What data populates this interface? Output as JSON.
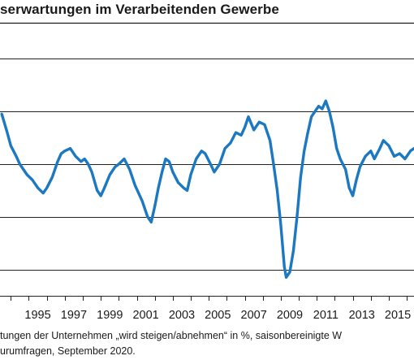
{
  "chart_data": {
    "type": "line",
    "title": "serwartungen im Verarbeitenden Gewerbe",
    "xlabel": "",
    "ylabel": "",
    "x_tick_labels": [
      "1995",
      "1997",
      "1999",
      "2001",
      "2003",
      "2005",
      "2007",
      "2009",
      "2011",
      "2013",
      "2015"
    ],
    "x_ticks": [
      1995,
      1997,
      1999,
      2001,
      2003,
      2005,
      2007,
      2009,
      2011,
      2013,
      2015
    ],
    "xlim": [
      1993.4,
      2016.4
    ],
    "y_gridlines": [
      -40,
      -20,
      0,
      20,
      40
    ],
    "ylim": [
      -50,
      50
    ],
    "grid": "horizontal",
    "series": [
      {
        "color": "#1c78c0",
        "points": [
          [
            1993.5,
            19
          ],
          [
            1993.8,
            12
          ],
          [
            1994.0,
            7
          ],
          [
            1994.3,
            3
          ],
          [
            1994.5,
            0
          ],
          [
            1994.9,
            -4
          ],
          [
            1995.2,
            -6
          ],
          [
            1995.5,
            -9
          ],
          [
            1995.8,
            -11
          ],
          [
            1996.0,
            -9
          ],
          [
            1996.3,
            -5
          ],
          [
            1996.6,
            1
          ],
          [
            1996.8,
            4
          ],
          [
            1997.0,
            5
          ],
          [
            1997.3,
            6
          ],
          [
            1997.6,
            3
          ],
          [
            1997.9,
            1
          ],
          [
            1998.1,
            2
          ],
          [
            1998.3,
            0
          ],
          [
            1998.5,
            -3
          ],
          [
            1998.8,
            -10
          ],
          [
            1999.0,
            -12
          ],
          [
            1999.2,
            -9
          ],
          [
            1999.5,
            -4
          ],
          [
            1999.8,
            -1
          ],
          [
            2000.0,
            0
          ],
          [
            2000.3,
            2
          ],
          [
            2000.6,
            -2
          ],
          [
            2000.9,
            -8
          ],
          [
            2001.1,
            -11
          ],
          [
            2001.3,
            -14
          ],
          [
            2001.6,
            -20
          ],
          [
            2001.8,
            -22
          ],
          [
            2002.0,
            -16
          ],
          [
            2002.2,
            -9
          ],
          [
            2002.4,
            -3
          ],
          [
            2002.6,
            2
          ],
          [
            2002.8,
            1
          ],
          [
            2003.0,
            -3
          ],
          [
            2003.3,
            -7
          ],
          [
            2003.6,
            -9
          ],
          [
            2003.8,
            -10
          ],
          [
            2004.0,
            -4
          ],
          [
            2004.3,
            2
          ],
          [
            2004.6,
            5
          ],
          [
            2004.8,
            4
          ],
          [
            2005.1,
            0
          ],
          [
            2005.3,
            -3
          ],
          [
            2005.6,
            0
          ],
          [
            2005.9,
            6
          ],
          [
            2006.2,
            8
          ],
          [
            2006.5,
            12
          ],
          [
            2006.8,
            11
          ],
          [
            2007.0,
            14
          ],
          [
            2007.2,
            18
          ],
          [
            2007.5,
            13
          ],
          [
            2007.8,
            16
          ],
          [
            2008.1,
            15
          ],
          [
            2008.4,
            9
          ],
          [
            2008.6,
            0
          ],
          [
            2008.8,
            -10
          ],
          [
            2009.0,
            -23
          ],
          [
            2009.2,
            -39
          ],
          [
            2009.3,
            -43
          ],
          [
            2009.5,
            -41
          ],
          [
            2009.7,
            -33
          ],
          [
            2009.9,
            -20
          ],
          [
            2010.1,
            -5
          ],
          [
            2010.3,
            5
          ],
          [
            2010.5,
            12
          ],
          [
            2010.7,
            18
          ],
          [
            2010.9,
            20
          ],
          [
            2011.1,
            22
          ],
          [
            2011.3,
            21
          ],
          [
            2011.5,
            24
          ],
          [
            2011.7,
            20
          ],
          [
            2011.9,
            14
          ],
          [
            2012.1,
            6
          ],
          [
            2012.3,
            2
          ],
          [
            2012.6,
            -2
          ],
          [
            2012.8,
            -9
          ],
          [
            2013.0,
            -12
          ],
          [
            2013.2,
            -6
          ],
          [
            2013.4,
            -1
          ],
          [
            2013.7,
            3
          ],
          [
            2014.0,
            5
          ],
          [
            2014.2,
            2
          ],
          [
            2014.5,
            6
          ],
          [
            2014.7,
            9
          ],
          [
            2015.0,
            7
          ],
          [
            2015.3,
            3
          ],
          [
            2015.6,
            4
          ],
          [
            2015.9,
            2
          ],
          [
            2016.2,
            5
          ],
          [
            2016.4,
            6
          ]
        ]
      }
    ]
  },
  "footnote": {
    "line1": "tungen der Unternehmen „wird steigen/abnehmen“ in %, saisonbereinigte W",
    "line2": "urumfragen, September 2020."
  }
}
